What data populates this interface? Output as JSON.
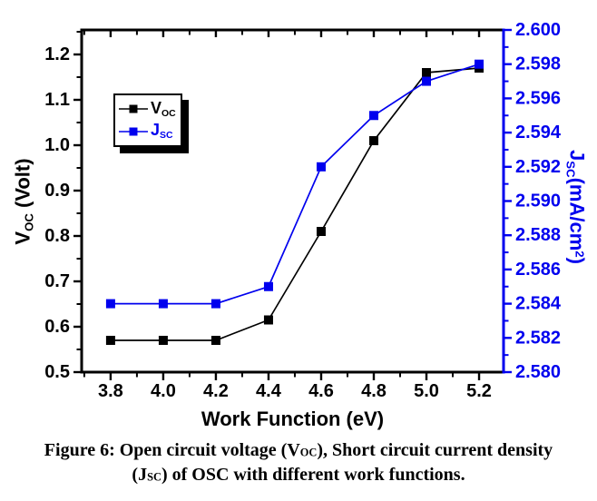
{
  "axes": {
    "x": {
      "title": "Work Function (eV)",
      "tick_labels": [
        "3.8",
        "4.0",
        "4.2",
        "4.4",
        "4.6",
        "4.8",
        "5.0",
        "5.2"
      ],
      "tick_values": [
        3.8,
        4.0,
        4.2,
        4.4,
        4.6,
        4.8,
        5.0,
        5.2
      ],
      "minor_values": [
        3.7,
        3.9,
        4.1,
        4.3,
        4.5,
        4.7,
        4.9,
        5.1
      ],
      "color": "#000000"
    },
    "left": {
      "title": {
        "main": "V",
        "sub": "OC",
        "rest": " (Volt)"
      },
      "tick_labels": [
        "0.5",
        "0.6",
        "0.7",
        "0.8",
        "0.9",
        "1.0",
        "1.1",
        "1.2"
      ],
      "tick_values": [
        0.5,
        0.6,
        0.7,
        0.8,
        0.9,
        1.0,
        1.1,
        1.2
      ],
      "minor_values": [
        0.55,
        0.65,
        0.75,
        0.85,
        0.95,
        1.05,
        1.15,
        1.25
      ],
      "color": "#000000"
    },
    "right": {
      "title": {
        "main": "J",
        "sub": "SC",
        "rest": "(mA/cm",
        "sup": "2",
        "close": ")"
      },
      "tick_labels": [
        "2.580",
        "2.582",
        "2.584",
        "2.586",
        "2.588",
        "2.590",
        "2.592",
        "2.594",
        "2.596",
        "2.598",
        "2.600"
      ],
      "tick_values": [
        2.58,
        2.582,
        2.584,
        2.586,
        2.588,
        2.59,
        2.592,
        2.594,
        2.596,
        2.598,
        2.6
      ],
      "minor_values": [
        2.581,
        2.583,
        2.585,
        2.587,
        2.589,
        2.591,
        2.593,
        2.595,
        2.597,
        2.599
      ],
      "color": "#0000ee"
    }
  },
  "legend": {
    "items": [
      {
        "main": "V",
        "sub": "OC",
        "color": "#000000"
      },
      {
        "main": "J",
        "sub": "SC",
        "color": "#0000ee"
      }
    ]
  },
  "caption": {
    "line1": {
      "pre": "Figure 6: Open circuit voltage (V",
      "sub": "OC",
      "post": "), Short circuit current density"
    },
    "line2": {
      "pre": "(J",
      "sub": "SC",
      "post": ") of OSC with different work functions."
    }
  },
  "chart_data": {
    "type": "line",
    "x": [
      3.8,
      4.0,
      4.2,
      4.4,
      4.6,
      4.8,
      5.0,
      5.2
    ],
    "series": [
      {
        "name": "V_OC",
        "axis": "left",
        "color": "#000000",
        "values": [
          0.57,
          0.57,
          0.57,
          0.615,
          0.81,
          1.01,
          1.16,
          1.17
        ]
      },
      {
        "name": "J_SC",
        "axis": "right",
        "color": "#0000ee",
        "values": [
          2.584,
          2.584,
          2.584,
          2.585,
          2.592,
          2.595,
          2.597,
          2.598
        ]
      }
    ],
    "xlabel": "Work Function (eV)",
    "ylabel_left": "V_OC (Volt)",
    "ylabel_right": "J_SC (mA/cm2)",
    "xlim": [
      3.69,
      5.293
    ],
    "ylim_left": [
      0.5,
      1.254
    ],
    "ylim_right": [
      2.58,
      2.6
    ],
    "grid": false,
    "legend_position": "upper-left-inside",
    "marker": "square"
  }
}
